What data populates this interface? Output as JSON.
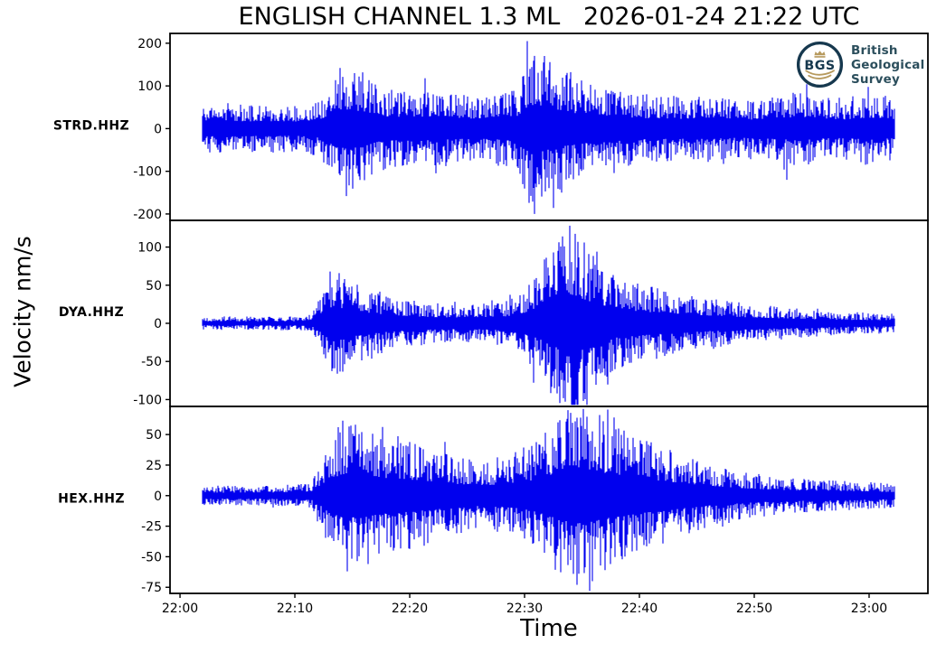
{
  "title": "ENGLISH CHANNEL 1.3 ML   2026-01-24 21:22 UTC",
  "logo": {
    "acronym": "BGS",
    "name_lines": [
      "British",
      "Geological",
      "Survey"
    ],
    "ring_color": "#16384e",
    "gold_color": "#b79a5e",
    "text_color": "#2b4e5c"
  },
  "colors": {
    "trace": "#0000ee",
    "axis": "#000000",
    "background": "#ffffff"
  },
  "chart_data": {
    "type": "line",
    "title": "ENGLISH CHANNEL 1.3 ML   2026-01-24 21:22 UTC",
    "xlabel": "Time",
    "ylabel": "Velocity nm/s",
    "x_axis": {
      "tick_labels": [
        "22:00",
        "22:10",
        "22:20",
        "22:30",
        "22:40",
        "22:50",
        "23:00"
      ],
      "tick_minutes_after_2200": [
        0,
        10,
        20,
        30,
        40,
        50,
        60
      ],
      "xlim_minutes": [
        -0.87,
        65.12
      ],
      "grid": false
    },
    "trace_color": "#0000ee",
    "panels": [
      {
        "station": "STRD.HHZ",
        "yticks": [
          200,
          100,
          0,
          -100,
          -200
        ],
        "ylim": [
          -215,
          223
        ],
        "trace_start_min": 2.0,
        "trace_end_min": 62.2,
        "peak_nm_s": 205,
        "trough_nm_s": -200,
        "seed": 11,
        "envelope": {
          "t_min": [
            2,
            4,
            6,
            8,
            10,
            12,
            12.8,
            13.5,
            14,
            15,
            16,
            17,
            18,
            20,
            22,
            24,
            26,
            28,
            29.5,
            30.3,
            31,
            32,
            33,
            34,
            35,
            36,
            38,
            40,
            42,
            44,
            46,
            48,
            50,
            52,
            54,
            56,
            58,
            60,
            62
          ],
          "amp_nm_s": [
            55,
            62,
            55,
            58,
            55,
            68,
            95,
            135,
            150,
            145,
            122,
            105,
            95,
            85,
            92,
            80,
            78,
            85,
            100,
            175,
            190,
            165,
            145,
            125,
            115,
            108,
            95,
            82,
            78,
            75,
            78,
            72,
            70,
            80,
            92,
            75,
            72,
            85,
            75
          ]
        },
        "spikes": [
          {
            "t": 30.2,
            "v": 205
          },
          {
            "t": 30.9,
            "v": -200
          },
          {
            "t": 31.7,
            "v": 160
          },
          {
            "t": 32.5,
            "v": -186
          },
          {
            "t": 33.2,
            "v": -150
          },
          {
            "t": 13.9,
            "v": 142
          },
          {
            "t": 14.5,
            "v": -158
          },
          {
            "t": 15.2,
            "v": 130
          },
          {
            "t": 21.3,
            "v": 118
          },
          {
            "t": 52.8,
            "v": -120
          },
          {
            "t": 54.6,
            "v": 104
          }
        ]
      },
      {
        "station": "DYA.HHZ",
        "yticks": [
          100,
          50,
          0,
          -50,
          -100
        ],
        "ylim": [
          -109,
          135
        ],
        "trace_start_min": 2.0,
        "trace_end_min": 62.2,
        "peak_nm_s": 128,
        "trough_nm_s": -100,
        "seed": 22,
        "envelope": {
          "t_min": [
            2,
            6,
            10,
            11.5,
            12.3,
            13,
            14,
            15,
            16,
            18,
            20,
            22,
            24,
            26,
            28,
            29,
            30,
            31,
            32,
            33,
            34,
            34.8,
            36,
            37,
            38,
            40,
            42,
            44,
            46,
            48,
            50,
            52,
            54,
            56,
            58,
            60,
            62
          ],
          "amp_nm_s": [
            9,
            9,
            9,
            12,
            38,
            70,
            66,
            57,
            47,
            37,
            31,
            27,
            25,
            25,
            29,
            34,
            46,
            62,
            85,
            105,
            125,
            112,
            90,
            75,
            62,
            52,
            45,
            39,
            34,
            29,
            25,
            22,
            19,
            17,
            15,
            14,
            13
          ]
        },
        "spikes": [
          {
            "t": 13.1,
            "v": 68
          },
          {
            "t": 13.7,
            "v": -66
          },
          {
            "t": 14.3,
            "v": 58
          },
          {
            "t": 30.8,
            "v": -78
          },
          {
            "t": 31.9,
            "v": 86
          },
          {
            "t": 32.8,
            "v": -92
          },
          {
            "t": 33.3,
            "v": 114
          },
          {
            "t": 33.9,
            "v": 128
          },
          {
            "t": 34.5,
            "v": -100
          },
          {
            "t": 35.2,
            "v": 106
          },
          {
            "t": 36.3,
            "v": 94
          }
        ]
      },
      {
        "station": "HEX.HHZ",
        "yticks": [
          50,
          25,
          0,
          -25,
          -50,
          -75
        ],
        "ylim": [
          -80,
          73
        ],
        "trace_start_min": 2.0,
        "trace_end_min": 62.2,
        "peak_nm_s": 72,
        "trough_nm_s": -74,
        "seed": 33,
        "envelope": {
          "t_min": [
            2,
            6,
            10,
            11.5,
            12.5,
            13.5,
            14.5,
            15.5,
            17,
            18,
            20,
            22,
            24,
            26,
            28,
            30,
            31,
            32,
            33,
            34,
            35,
            36,
            37,
            38,
            40,
            42,
            44,
            46,
            48,
            50,
            52,
            54,
            56,
            58,
            60,
            62
          ],
          "amp_nm_s": [
            8,
            8,
            9,
            12,
            32,
            52,
            58,
            60,
            52,
            48,
            44,
            38,
            32,
            28,
            30,
            36,
            44,
            54,
            64,
            70,
            72,
            68,
            62,
            58,
            48,
            40,
            33,
            27,
            22,
            18,
            16,
            14,
            13,
            12,
            11,
            10
          ]
        },
        "spikes": [
          {
            "t": 13.8,
            "v": 56
          },
          {
            "t": 14.6,
            "v": -62
          },
          {
            "t": 15.3,
            "v": 58
          },
          {
            "t": 16.4,
            "v": -56
          },
          {
            "t": 23.1,
            "v": 44
          },
          {
            "t": 32.9,
            "v": 60
          },
          {
            "t": 33.8,
            "v": 70
          },
          {
            "t": 34.6,
            "v": -73
          },
          {
            "t": 35.1,
            "v": 71
          },
          {
            "t": 35.9,
            "v": -70
          },
          {
            "t": 36.5,
            "v": 66
          },
          {
            "t": 37.8,
            "v": 64
          }
        ]
      }
    ]
  }
}
